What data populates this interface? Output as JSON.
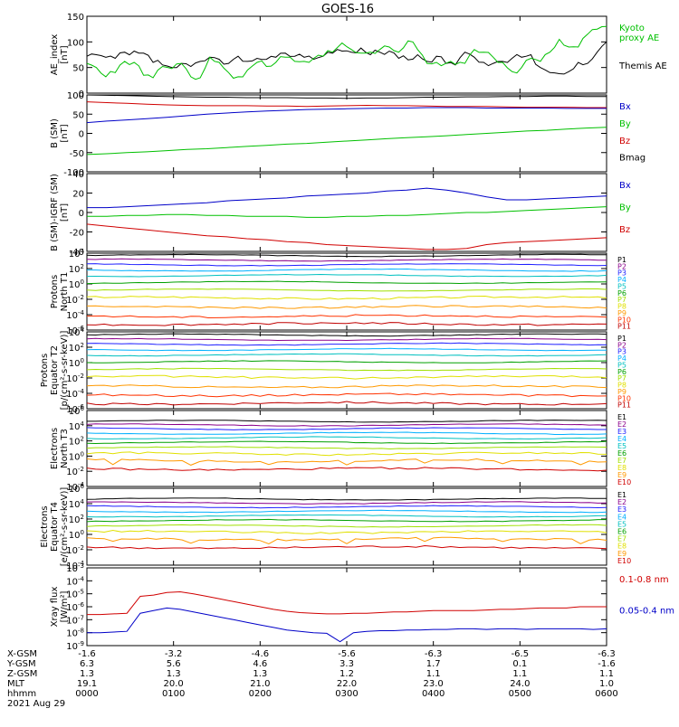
{
  "title": "GOES-16",
  "colors": {
    "black": "#000000",
    "red": "#d00000",
    "green": "#00c000",
    "blue": "#0000c8",
    "p": [
      "#000000",
      "#8b008b",
      "#2020ff",
      "#00b0ff",
      "#00c0c0",
      "#00a000",
      "#a0e000",
      "#e0e000",
      "#ff9900",
      "#ff3300",
      "#c00000"
    ],
    "e": [
      "#000000",
      "#8b008b",
      "#2020ff",
      "#00b0ff",
      "#00c0c0",
      "#00a000",
      "#a0e000",
      "#e0e000",
      "#ff9900",
      "#d00000"
    ]
  },
  "chart_data": [
    {
      "type": "line",
      "id": "ae",
      "ylabel": [
        "AE_index",
        "[nT]"
      ],
      "ylim": [
        0,
        150
      ],
      "yticks": [
        "150",
        "100",
        "50",
        "0"
      ],
      "legend": [
        {
          "text": "Kyoto\nproxy AE",
          "color": "#00c000"
        },
        {
          "text": "Themis AE",
          "color": "#000000"
        }
      ],
      "series": [
        {
          "name": "Themis AE",
          "color": "#000000",
          "values": [
            72,
            75,
            70,
            68,
            80,
            82,
            78,
            60,
            55,
            50,
            58,
            52,
            62,
            70,
            66,
            58,
            72,
            62,
            68,
            66,
            70,
            78,
            72,
            70,
            66,
            72,
            78,
            82,
            80,
            88,
            75,
            80,
            82,
            68,
            65,
            75,
            62,
            72,
            58,
            55,
            80,
            70,
            60,
            58,
            62,
            68,
            70,
            75,
            50,
            40,
            38,
            42,
            60,
            58,
            80,
            100
          ]
        },
        {
          "name": "Kyoto proxy AE",
          "color": "#00c000",
          "values": [
            58,
            50,
            32,
            40,
            62,
            60,
            35,
            30,
            52,
            48,
            58,
            32,
            30,
            70,
            60,
            40,
            32,
            45,
            60,
            52,
            60,
            70,
            62,
            62,
            68,
            72,
            80,
            98,
            85,
            78,
            80,
            85,
            90,
            80,
            102,
            85,
            58,
            60,
            58,
            56,
            58,
            85,
            80,
            70,
            60,
            42,
            50,
            68,
            62,
            80,
            105,
            90,
            90,
            115,
            125,
            130
          ]
        }
      ]
    },
    {
      "type": "line",
      "id": "bsm",
      "ylabel": [
        "B (SM)",
        "[nT]"
      ],
      "ylim": [
        -100,
        100
      ],
      "yticks": [
        "100",
        "50",
        "0",
        "-50",
        "-100"
      ],
      "legend": [
        {
          "text": "Bx",
          "color": "#0000c8"
        },
        {
          "text": "By",
          "color": "#00c000"
        },
        {
          "text": "Bz",
          "color": "#d00000"
        },
        {
          "text": "Bmag",
          "color": "#000000"
        }
      ],
      "series": [
        {
          "name": "Bmag",
          "color": "#000000",
          "values": [
            100,
            99,
            98,
            97,
            96,
            95,
            94,
            94,
            93,
            93,
            93,
            92,
            92,
            91,
            92,
            92,
            93,
            94,
            94,
            95,
            95,
            96,
            96,
            97,
            97,
            96,
            96
          ]
        },
        {
          "name": "Bz",
          "color": "#d00000",
          "values": [
            82,
            80,
            78,
            76,
            74,
            73,
            72,
            72,
            72,
            71,
            71,
            70,
            71,
            72,
            73,
            72,
            72,
            71,
            70,
            70,
            70,
            69,
            68,
            68,
            68,
            67,
            67
          ]
        },
        {
          "name": "Bx",
          "color": "#0000c8",
          "values": [
            28,
            32,
            35,
            38,
            42,
            46,
            50,
            53,
            56,
            58,
            60,
            62,
            63,
            64,
            65,
            66,
            66,
            67,
            67,
            67,
            66,
            66,
            66,
            66,
            65,
            65,
            65
          ]
        },
        {
          "name": "By",
          "color": "#00c000",
          "values": [
            -55,
            -53,
            -50,
            -48,
            -45,
            -42,
            -40,
            -37,
            -34,
            -31,
            -28,
            -26,
            -23,
            -20,
            -17,
            -14,
            -11,
            -9,
            -6,
            -3,
            0,
            3,
            6,
            8,
            11,
            14,
            16
          ]
        }
      ]
    },
    {
      "type": "line",
      "id": "bigrf",
      "ylabel": [
        "B (SM)-IGRF (SM)",
        "[nT]"
      ],
      "ylim": [
        -40,
        40
      ],
      "yticks": [
        "40",
        "20",
        "0",
        "-20",
        "-40"
      ],
      "legend": [
        {
          "text": "Bx",
          "color": "#0000c8"
        },
        {
          "text": "By",
          "color": "#00c000"
        },
        {
          "text": "Bz",
          "color": "#d00000"
        }
      ],
      "series": [
        {
          "name": "Bx",
          "color": "#0000c8",
          "values": [
            5,
            5,
            6,
            7,
            8,
            9,
            10,
            12,
            13,
            14,
            15,
            17,
            18,
            19,
            20,
            22,
            23,
            25,
            23,
            20,
            16,
            13,
            13,
            14,
            15,
            16,
            17
          ]
        },
        {
          "name": "By",
          "color": "#00c000",
          "values": [
            -4,
            -4,
            -3,
            -3,
            -2,
            -2,
            -3,
            -3,
            -4,
            -4,
            -4,
            -5,
            -5,
            -4,
            -4,
            -3,
            -3,
            -2,
            -1,
            0,
            0,
            1,
            2,
            3,
            4,
            5,
            6
          ]
        },
        {
          "name": "Bz",
          "color": "#d00000",
          "values": [
            -12,
            -14,
            -16,
            -18,
            -20,
            -22,
            -24,
            -25,
            -27,
            -28,
            -30,
            -31,
            -33,
            -34,
            -35,
            -36,
            -37,
            -38,
            -38,
            -37,
            -33,
            -31,
            -30,
            -29,
            -28,
            -27,
            -26
          ]
        }
      ]
    },
    {
      "type": "line",
      "id": "protons-north",
      "log": true,
      "ylabel": [
        "Protons",
        "North T1"
      ],
      "ylim": [
        -6,
        4
      ],
      "yticks": [
        "10^4",
        "10^2",
        "10^0",
        "10^-2",
        "10^-4",
        "10^-6"
      ],
      "legend_labels": [
        "P1",
        "P2",
        "P3",
        "P4",
        "P5",
        "P6",
        "P7",
        "P8",
        "P9",
        "P10",
        "P11"
      ],
      "levels": [
        3.7,
        3.1,
        2.5,
        1.8,
        1.1,
        0.2,
        -0.8,
        -1.8,
        -3.0,
        -4.2,
        -5.2
      ]
    },
    {
      "type": "line",
      "id": "protons-equator",
      "log": true,
      "ylabel": [
        "Protons",
        "Equator T2",
        "[p/(cm²-s-sr-keV)]"
      ],
      "ylim": [
        -6,
        4
      ],
      "yticks": [
        "10^4",
        "10^2",
        "10^0",
        "10^-2",
        "10^-4",
        "10^-6"
      ],
      "legend_labels": [
        "P1",
        "P2",
        "P3",
        "P4",
        "P5",
        "P6",
        "P7",
        "P8",
        "P9",
        "P10",
        "P11"
      ],
      "levels": [
        3.6,
        3.0,
        2.4,
        1.7,
        1.0,
        0.1,
        -0.9,
        -1.9,
        -3.1,
        -4.2,
        -5.3
      ]
    },
    {
      "type": "line",
      "id": "electrons-north",
      "log": true,
      "ylabel": [
        "Electrons",
        "North T3"
      ],
      "ylim": [
        -4,
        6
      ],
      "yticks": [
        "10^6",
        "10^4",
        "10^2",
        "10^0",
        "10^-2",
        "10^-4"
      ],
      "legend_labels": [
        "E1",
        "E2",
        "E3",
        "E4",
        "E5",
        "E6",
        "E7",
        "E8",
        "E9",
        "E10"
      ],
      "levels": [
        4.6,
        4.1,
        3.6,
        3.0,
        2.4,
        1.8,
        1.1,
        0.3,
        -0.6,
        -1.7
      ]
    },
    {
      "type": "line",
      "id": "electrons-equator",
      "log": true,
      "ylabel": [
        "Electrons",
        "Equator T4",
        "[e/(cm²-s-sr-keV)]"
      ],
      "ylim": [
        -4,
        6
      ],
      "yticks": [
        "10^6",
        "10^4",
        "10^2",
        "10^0",
        "10^-2",
        "10^-4"
      ],
      "legend_labels": [
        "E1",
        "E2",
        "E3",
        "E4",
        "E5",
        "E6",
        "E7",
        "E8",
        "E9",
        "E10"
      ],
      "levels": [
        4.6,
        4.1,
        3.6,
        3.0,
        2.4,
        1.8,
        1.1,
        0.3,
        -0.6,
        -1.7
      ]
    },
    {
      "type": "line",
      "id": "xray",
      "log": true,
      "ylabel": [
        "Xray flux",
        "[W/m²]"
      ],
      "ylim": [
        -9,
        -3
      ],
      "yticks": [
        "10^-3",
        "10^-4",
        "10^-5",
        "10^-6",
        "10^-7",
        "10^-8",
        "10^-9"
      ],
      "legend": [
        {
          "text": "0.1-0.8 nm",
          "color": "#d00000"
        },
        {
          "text": "0.05-0.4 nm",
          "color": "#0000c8"
        }
      ],
      "series": [
        {
          "name": "0.1-0.8 nm",
          "color": "#d00000",
          "values": [
            -6.6,
            -6.6,
            -6.55,
            -6.5,
            -5.2,
            -5.1,
            -4.9,
            -4.85,
            -5.0,
            -5.2,
            -5.4,
            -5.6,
            -5.8,
            -6.0,
            -6.2,
            -6.35,
            -6.45,
            -6.5,
            -6.55,
            -6.55,
            -6.5,
            -6.5,
            -6.45,
            -6.4,
            -6.4,
            -6.35,
            -6.3,
            -6.3,
            -6.3,
            -6.3,
            -6.25,
            -6.2,
            -6.2,
            -6.15,
            -6.1,
            -6.1,
            -6.1,
            -6.0,
            -6.0,
            -6.0
          ]
        },
        {
          "name": "0.05-0.4 nm",
          "color": "#0000c8",
          "values": [
            -8.0,
            -8.0,
            -7.95,
            -7.9,
            -6.5,
            -6.3,
            -6.1,
            -6.2,
            -6.4,
            -6.6,
            -6.8,
            -7.0,
            -7.2,
            -7.4,
            -7.6,
            -7.8,
            -7.9,
            -8.0,
            -8.05,
            -8.7,
            -8.0,
            -7.9,
            -7.85,
            -7.85,
            -7.8,
            -7.8,
            -7.75,
            -7.75,
            -7.7,
            -7.7,
            -7.75,
            -7.7,
            -7.7,
            -7.75,
            -7.7,
            -7.7,
            -7.7,
            -7.7,
            -7.75,
            -7.7
          ]
        }
      ]
    }
  ],
  "x_axis": {
    "row_labels": [
      "X-GSM",
      "Y-GSM",
      "Z-GSM",
      "MLT",
      "hhmm"
    ],
    "columns": [
      [
        "-1.6",
        "6.3",
        "1.3",
        "19.1",
        "0000"
      ],
      [
        "-3.2",
        "5.6",
        "1.3",
        "20.0",
        "0100"
      ],
      [
        "-4.6",
        "4.6",
        "1.3",
        "21.0",
        "0200"
      ],
      [
        "-5.6",
        "3.3",
        "1.2",
        "22.0",
        "0300"
      ],
      [
        "-6.3",
        "1.7",
        "1.1",
        "23.0",
        "0400"
      ],
      [
        "-6.5",
        "0.1",
        "1.1",
        "24.0",
        "0500"
      ],
      [
        "-6.3",
        "-1.6",
        "1.1",
        "1.0",
        "0600"
      ]
    ],
    "date": "2021 Aug 29"
  }
}
